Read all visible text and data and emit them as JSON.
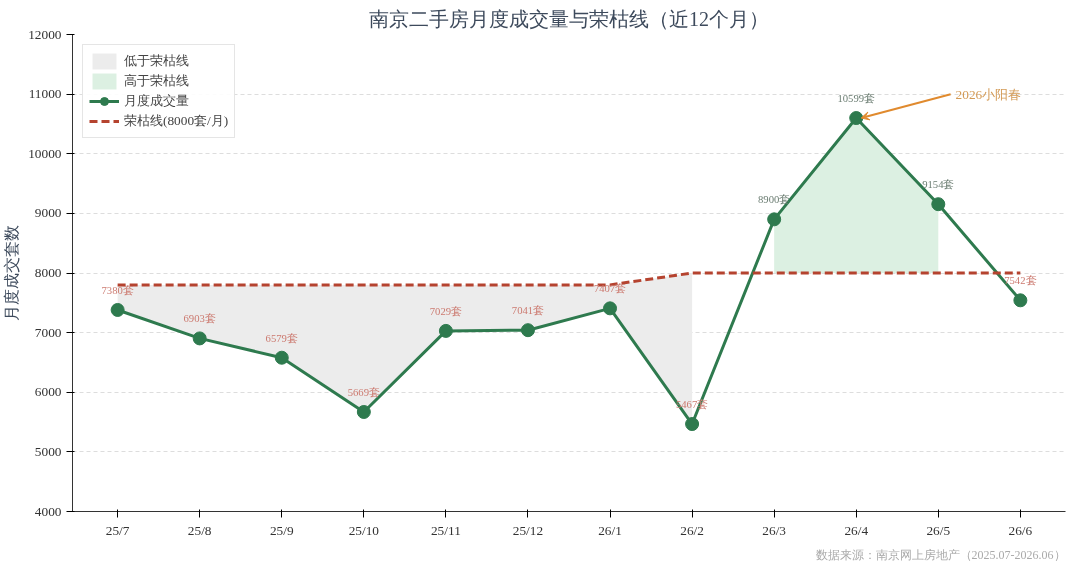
{
  "chart_data": {
    "type": "line",
    "title": "南京二手房月度成交量与荣枯线（近12个月）",
    "ylabel": "月度成交套数",
    "categories": [
      "25/7",
      "25/8",
      "25/9",
      "25/10",
      "25/11",
      "25/12",
      "26/1",
      "26/2",
      "26/3",
      "26/4",
      "26/5",
      "26/6"
    ],
    "series": [
      {
        "name": "低于荣枯线",
        "type": "area",
        "color": "#ececec",
        "values": [
          7800,
          7800,
          7800,
          7800,
          7800,
          7800,
          7800,
          8000,
          null,
          null,
          null,
          null
        ]
      },
      {
        "name": "高于荣枯线",
        "type": "area",
        "color": "#dcf0e2",
        "values": [
          null,
          null,
          null,
          null,
          null,
          null,
          null,
          null,
          8900,
          10599,
          9154,
          null
        ]
      },
      {
        "name": "月度成交量",
        "color": "#2e7a4e",
        "marker": "circle",
        "line_style": "solid",
        "values": [
          7380,
          6903,
          6579,
          5669,
          7029,
          7041,
          7407,
          5467,
          8900,
          10599,
          9154,
          7542
        ],
        "value_labels": [
          "7380套",
          "6903套",
          "6579套",
          "5669套",
          "7029套",
          "7041套",
          "7407套",
          "5467套",
          "8900套",
          "10599套",
          "9154套",
          "7542套"
        ]
      },
      {
        "name": "荣枯线(8000套/月)",
        "color": "#b5432f",
        "marker": "none",
        "line_style": "dashed",
        "values": [
          7800,
          7800,
          7800,
          7800,
          7800,
          7800,
          7800,
          8000,
          8000,
          8000,
          8000,
          8000
        ]
      }
    ],
    "ylim": [
      4000,
      12000
    ],
    "yticks": [
      4000,
      5000,
      6000,
      7000,
      8000,
      9000,
      10000,
      11000,
      12000
    ],
    "grid": "y",
    "legend": "top left",
    "annotations": [
      {
        "text": "2026小阳春",
        "x": "26/4",
        "y": 10599
      },
      "数据来源：南京网上房地产（2025.07-2026.06）"
    ]
  }
}
